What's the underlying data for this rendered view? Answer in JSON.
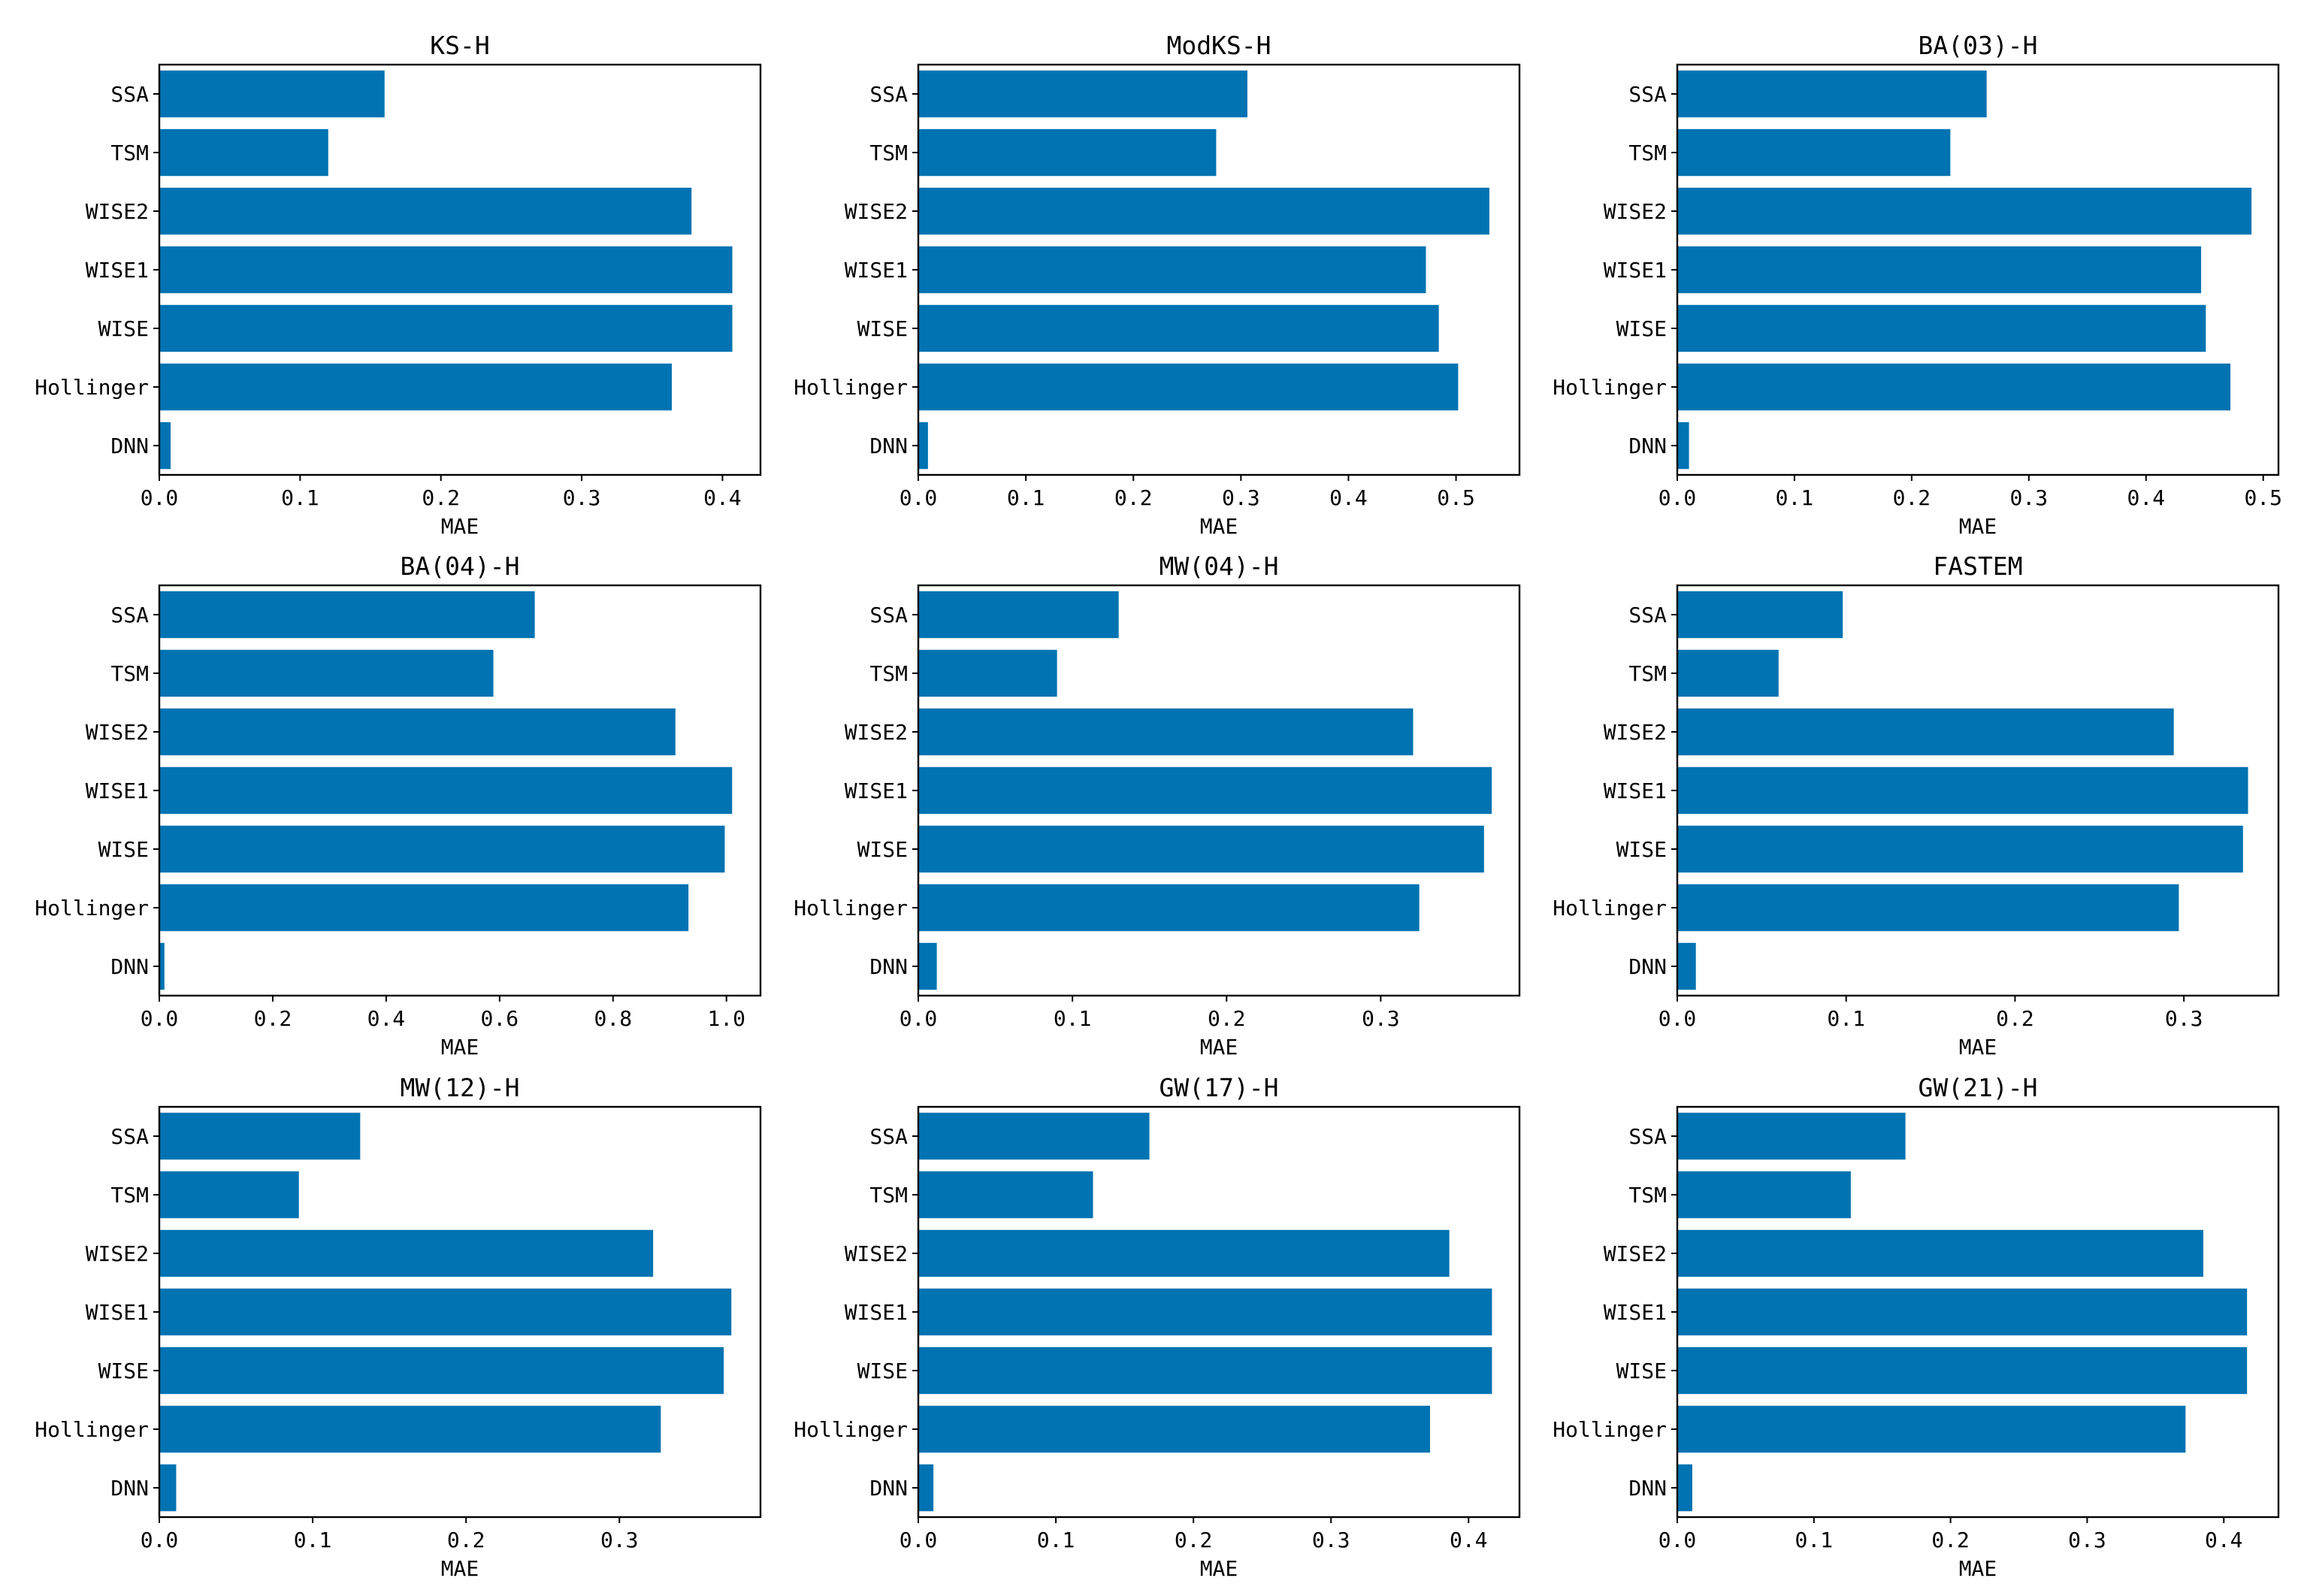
{
  "chart_data": [
    {
      "type": "bar",
      "orientation": "horizontal",
      "title": "KS-H",
      "xlabel": "MAE",
      "categories": [
        "SSA",
        "TSM",
        "WISE2",
        "WISE1",
        "WISE",
        "Hollinger",
        "DNN"
      ],
      "values": [
        0.16,
        0.12,
        0.378,
        0.407,
        0.407,
        0.364,
        0.008
      ],
      "xlim": [
        0,
        0.427
      ],
      "xticks": [
        0.0,
        0.1,
        0.2,
        0.3,
        0.4
      ],
      "xticklabels": [
        "0.0",
        "0.1",
        "0.2",
        "0.3",
        "0.4"
      ],
      "grid": false,
      "color": "#0173b2"
    },
    {
      "type": "bar",
      "orientation": "horizontal",
      "title": "ModKS-H",
      "xlabel": "MAE",
      "categories": [
        "SSA",
        "TSM",
        "WISE2",
        "WISE1",
        "WISE",
        "Hollinger",
        "DNN"
      ],
      "values": [
        0.306,
        0.277,
        0.531,
        0.472,
        0.484,
        0.502,
        0.009
      ],
      "xlim": [
        0,
        0.559
      ],
      "xticks": [
        0.0,
        0.1,
        0.2,
        0.3,
        0.4,
        0.5
      ],
      "xticklabels": [
        "0.0",
        "0.1",
        "0.2",
        "0.3",
        "0.4",
        "0.5"
      ],
      "grid": false,
      "color": "#0173b2"
    },
    {
      "type": "bar",
      "orientation": "horizontal",
      "title": "BA(03)-H",
      "xlabel": "MAE",
      "categories": [
        "SSA",
        "TSM",
        "WISE2",
        "WISE1",
        "WISE",
        "Hollinger",
        "DNN"
      ],
      "values": [
        0.264,
        0.233,
        0.49,
        0.447,
        0.451,
        0.472,
        0.01
      ],
      "xlim": [
        0,
        0.513
      ],
      "xticks": [
        0.0,
        0.1,
        0.2,
        0.3,
        0.4,
        0.5
      ],
      "xticklabels": [
        "0.0",
        "0.1",
        "0.2",
        "0.3",
        "0.4",
        "0.5"
      ],
      "grid": false,
      "color": "#0173b2"
    },
    {
      "type": "bar",
      "orientation": "horizontal",
      "title": "BA(04)-H",
      "xlabel": "MAE",
      "categories": [
        "SSA",
        "TSM",
        "WISE2",
        "WISE1",
        "WISE",
        "Hollinger",
        "DNN"
      ],
      "values": [
        0.662,
        0.589,
        0.91,
        1.01,
        0.997,
        0.933,
        0.009
      ],
      "xlim": [
        0,
        1.06
      ],
      "xticks": [
        0.0,
        0.2,
        0.4,
        0.6,
        0.8,
        1.0
      ],
      "xticklabels": [
        "0.0",
        "0.2",
        "0.4",
        "0.6",
        "0.8",
        "1.0"
      ],
      "grid": false,
      "color": "#0173b2"
    },
    {
      "type": "bar",
      "orientation": "horizontal",
      "title": "MW(04)-H",
      "xlabel": "MAE",
      "categories": [
        "SSA",
        "TSM",
        "WISE2",
        "WISE1",
        "WISE",
        "Hollinger",
        "DNN"
      ],
      "values": [
        0.13,
        0.09,
        0.321,
        0.372,
        0.367,
        0.325,
        0.012
      ],
      "xlim": [
        0,
        0.39
      ],
      "xticks": [
        0.0,
        0.1,
        0.2,
        0.3
      ],
      "xticklabels": [
        "0.0",
        "0.1",
        "0.2",
        "0.3"
      ],
      "grid": false,
      "color": "#0173b2"
    },
    {
      "type": "bar",
      "orientation": "horizontal",
      "title": "FASTEM",
      "xlabel": "MAE",
      "categories": [
        "SSA",
        "TSM",
        "WISE2",
        "WISE1",
        "WISE",
        "Hollinger",
        "DNN"
      ],
      "values": [
        0.098,
        0.06,
        0.294,
        0.338,
        0.335,
        0.297,
        0.011
      ],
      "xlim": [
        0,
        0.356
      ],
      "xticks": [
        0.0,
        0.1,
        0.2,
        0.3
      ],
      "xticklabels": [
        "0.0",
        "0.1",
        "0.2",
        "0.3"
      ],
      "grid": false,
      "color": "#0173b2"
    },
    {
      "type": "bar",
      "orientation": "horizontal",
      "title": "MW(12)-H",
      "xlabel": "MAE",
      "categories": [
        "SSA",
        "TSM",
        "WISE2",
        "WISE1",
        "WISE",
        "Hollinger",
        "DNN"
      ],
      "values": [
        0.131,
        0.091,
        0.322,
        0.373,
        0.368,
        0.327,
        0.011
      ],
      "xlim": [
        0,
        0.392
      ],
      "xticks": [
        0.0,
        0.1,
        0.2,
        0.3
      ],
      "xticklabels": [
        "0.0",
        "0.1",
        "0.2",
        "0.3"
      ],
      "grid": false,
      "color": "#0173b2"
    },
    {
      "type": "bar",
      "orientation": "horizontal",
      "title": "GW(17)-H",
      "xlabel": "MAE",
      "categories": [
        "SSA",
        "TSM",
        "WISE2",
        "WISE1",
        "WISE",
        "Hollinger",
        "DNN"
      ],
      "values": [
        0.168,
        0.127,
        0.386,
        0.417,
        0.417,
        0.372,
        0.011
      ],
      "xlim": [
        0,
        0.437
      ],
      "xticks": [
        0.0,
        0.1,
        0.2,
        0.3,
        0.4
      ],
      "xticklabels": [
        "0.0",
        "0.1",
        "0.2",
        "0.3",
        "0.4"
      ],
      "grid": false,
      "color": "#0173b2"
    },
    {
      "type": "bar",
      "orientation": "horizontal",
      "title": "GW(21)-H",
      "xlabel": "MAE",
      "categories": [
        "SSA",
        "TSM",
        "WISE2",
        "WISE1",
        "WISE",
        "Hollinger",
        "DNN"
      ],
      "values": [
        0.167,
        0.127,
        0.385,
        0.417,
        0.417,
        0.372,
        0.011
      ],
      "xlim": [
        0,
        0.44
      ],
      "xticks": [
        0.0,
        0.1,
        0.2,
        0.3,
        0.4
      ],
      "xticklabels": [
        "0.0",
        "0.1",
        "0.2",
        "0.3",
        "0.4"
      ],
      "grid": false,
      "color": "#0173b2"
    }
  ]
}
